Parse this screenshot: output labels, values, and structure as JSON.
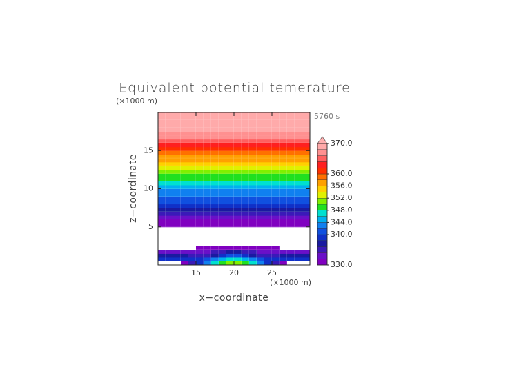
{
  "chart_data": {
    "type": "contour",
    "title": "Equivalent potential temerature",
    "time_label": "5760 s",
    "x_label": "x−coordinate",
    "y_label": "z−coordinate",
    "x_unit": "(×1000 m)",
    "y_unit": "(×1000 m)",
    "xlim": [
      10,
      30
    ],
    "ylim": [
      0,
      20
    ],
    "xticks": [
      15,
      20,
      25
    ],
    "yticks": [
      5,
      10,
      15
    ],
    "levels": [
      330,
      332,
      334,
      336,
      338,
      340,
      342,
      344,
      346,
      348,
      350,
      352,
      354,
      356,
      358,
      360,
      362,
      364,
      366,
      368,
      370
    ],
    "colors": [
      "#8000c0",
      "#6a10c8",
      "#3a1ab8",
      "#1a1aa0",
      "#1030c8",
      "#1050e0",
      "#1080f0",
      "#00b0f0",
      "#00e0d0",
      "#20e020",
      "#80f000",
      "#e0f000",
      "#ffd000",
      "#ffa000",
      "#ff7000",
      "#ff3000",
      "#ff2020",
      "#ff6060",
      "#ff9090",
      "#ffaaaa"
    ],
    "over_color": "#ffb0b0",
    "colorbar_ticks": [
      {
        "value": 330,
        "label": "330.0"
      },
      {
        "value": 340,
        "label": "340.0"
      },
      {
        "value": 344,
        "label": "344.0"
      },
      {
        "value": 348,
        "label": "348.0"
      },
      {
        "value": 352,
        "label": "352.0"
      },
      {
        "value": 356,
        "label": "356.0"
      },
      {
        "value": 360,
        "label": "360.0"
      },
      {
        "value": 370,
        "label": "370.0"
      }
    ],
    "profile": {
      "z": [
        5,
        5.5,
        6,
        6.5,
        7,
        7.5,
        8,
        8.5,
        9,
        9.5,
        10,
        10.5,
        11,
        11.5,
        12,
        12.5,
        13,
        13.5,
        14,
        14.5,
        15,
        15.5,
        16,
        16.5,
        17,
        17.5,
        18,
        18.5,
        19,
        19.5
      ],
      "values": [
        330.5,
        331.5,
        333,
        335,
        337,
        338.5,
        340,
        341.5,
        342.5,
        343.5,
        345,
        346.5,
        348,
        349.5,
        351,
        352.5,
        354,
        356,
        357.5,
        359.5,
        361,
        363,
        365,
        366,
        367,
        368,
        368,
        368,
        368,
        368
      ]
    },
    "low_level": {
      "x": [
        10,
        11,
        12,
        13,
        14,
        15,
        16,
        17,
        18,
        19,
        20,
        21,
        22,
        23,
        24,
        25,
        26,
        27,
        28,
        29
      ],
      "z": [
        0,
        0.5,
        1,
        1.5,
        2
      ],
      "values": [
        [
          328,
          328,
          328,
          330,
          334,
          338,
          342,
          346,
          348,
          350,
          350,
          348,
          346,
          342,
          338,
          334,
          330,
          328,
          328,
          328
        ],
        [
          338,
          338,
          338,
          338,
          338,
          338,
          340,
          342,
          344,
          346,
          346,
          344,
          342,
          340,
          338,
          338,
          338,
          338,
          338,
          338
        ],
        [
          336,
          336,
          336,
          336,
          334,
          334,
          334,
          336,
          338,
          340,
          340,
          338,
          336,
          334,
          334,
          334,
          336,
          336,
          336,
          336
        ],
        [
          332,
          332,
          332,
          332,
          332,
          333,
          333,
          334,
          334,
          336,
          336,
          334,
          334,
          333,
          333,
          332,
          332,
          332,
          332,
          332
        ],
        [
          328,
          328,
          328,
          328,
          328,
          331,
          331,
          331,
          331,
          331,
          331,
          331,
          331,
          331,
          331,
          331,
          328,
          328,
          328,
          328
        ]
      ]
    }
  }
}
